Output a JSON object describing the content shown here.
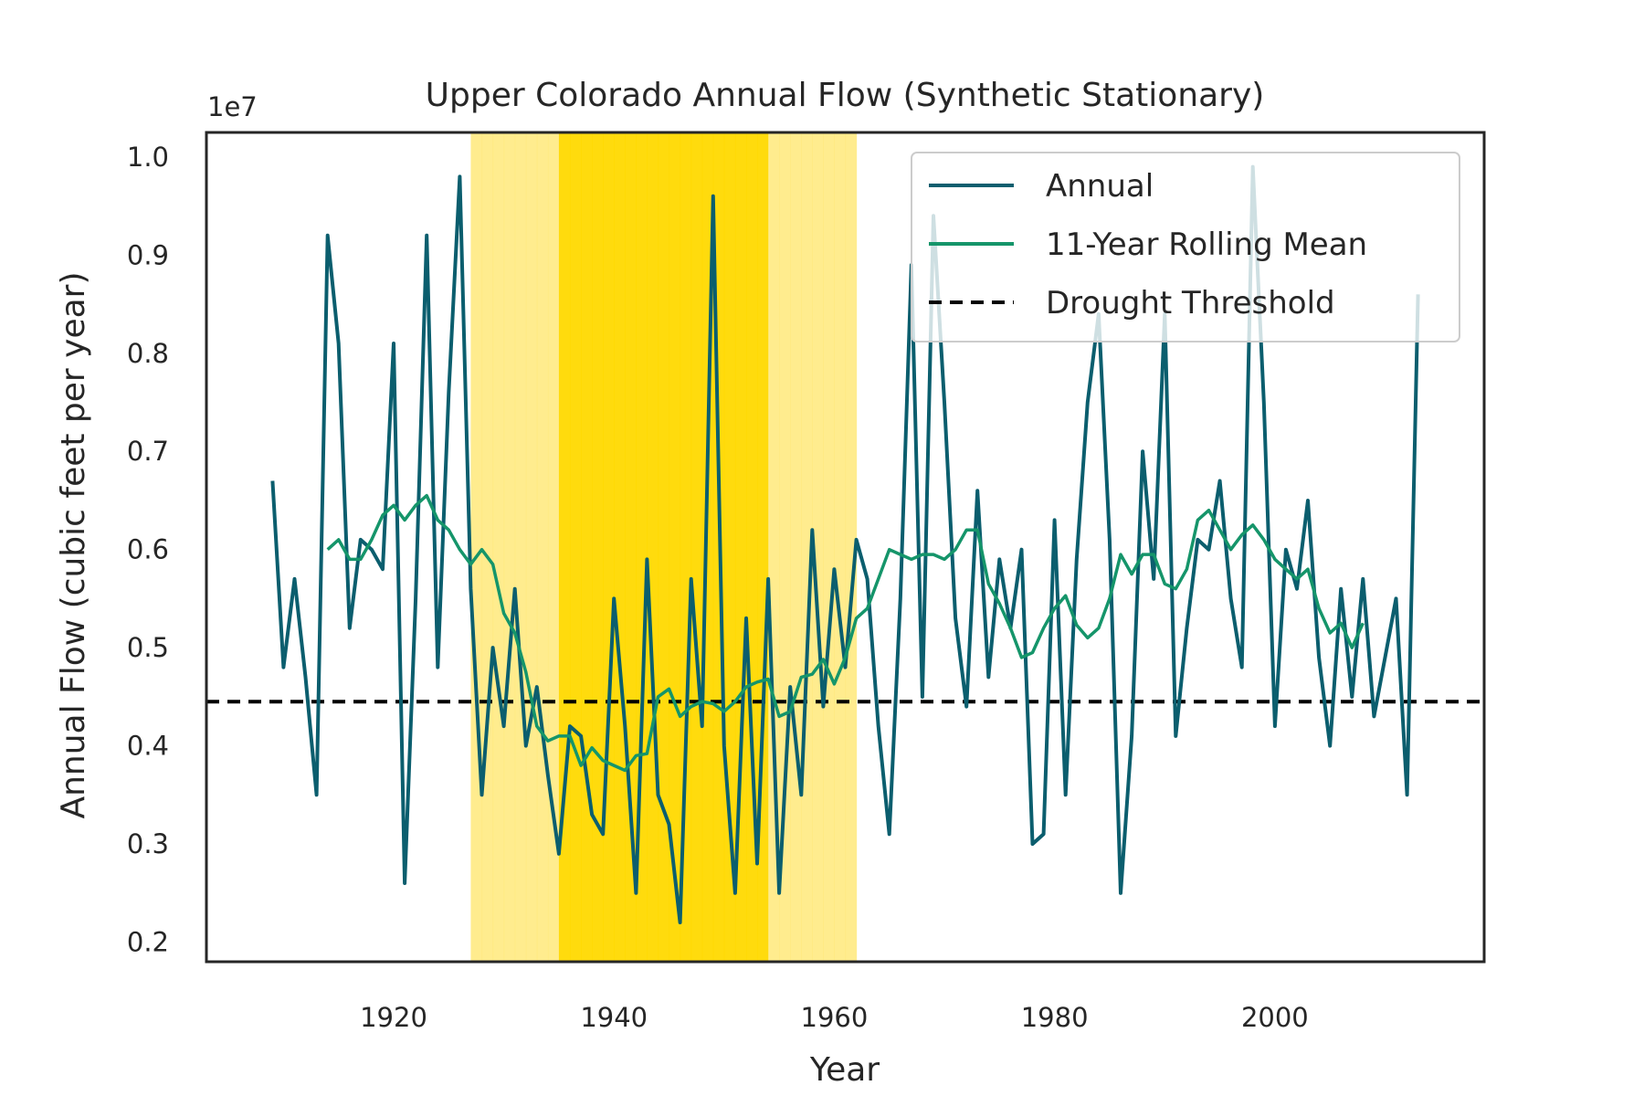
{
  "chart_data": {
    "type": "line",
    "title": "Upper Colorado Annual Flow (Synthetic Stationary)",
    "xlabel": "Year",
    "ylabel": "Annual Flow (cubic feet per year)",
    "y_offset_label": "1e7",
    "xlim": [
      1903,
      2019
    ],
    "ylim": [
      0.18,
      1.025
    ],
    "x_ticks": [
      1920,
      1940,
      1960,
      1980,
      2000
    ],
    "x_tick_labels": [
      "1920",
      "1940",
      "1960",
      "1980",
      "2000"
    ],
    "y_ticks": [
      0.2,
      0.3,
      0.4,
      0.5,
      0.6,
      0.7,
      0.8,
      0.9,
      1.0
    ],
    "y_tick_labels": [
      "0.2",
      "0.3",
      "0.4",
      "0.5",
      "0.6",
      "0.7",
      "0.8",
      "0.9",
      "1.0"
    ],
    "grid": false,
    "legend_position": "top-right",
    "colors": {
      "annual": "#0b5e6e",
      "rolling": "#15956a",
      "threshold": "#000000",
      "drought_light": "#ffe97a",
      "drought_dark": "#ffd900",
      "frame": "#262626"
    },
    "drought_period": {
      "start": 1927,
      "end": 1962
    },
    "drought_threshold": 0.445,
    "series": [
      {
        "name": "Annual",
        "x": [
          1909,
          1910,
          1911,
          1912,
          1913,
          1914,
          1915,
          1916,
          1917,
          1918,
          1919,
          1920,
          1921,
          1922,
          1923,
          1924,
          1925,
          1926,
          1927,
          1928,
          1929,
          1930,
          1931,
          1932,
          1933,
          1934,
          1935,
          1936,
          1937,
          1938,
          1939,
          1940,
          1941,
          1942,
          1943,
          1944,
          1945,
          1946,
          1947,
          1948,
          1949,
          1950,
          1951,
          1952,
          1953,
          1954,
          1955,
          1956,
          1957,
          1958,
          1959,
          1960,
          1961,
          1962,
          1963,
          1964,
          1965,
          1966,
          1967,
          1968,
          1969,
          1970,
          1971,
          1972,
          1973,
          1974,
          1975,
          1976,
          1977,
          1978,
          1979,
          1980,
          1981,
          1982,
          1983,
          1984,
          1985,
          1986,
          1987,
          1988,
          1989,
          1990,
          1991,
          1992,
          1993,
          1994,
          1995,
          1996,
          1997,
          1998,
          1999,
          2000,
          2001,
          2002,
          2003,
          2004,
          2005,
          2006,
          2007,
          2008,
          2009,
          2010,
          2011,
          2012,
          2013
        ],
        "values": [
          0.67,
          0.48,
          0.57,
          0.47,
          0.35,
          0.92,
          0.81,
          0.52,
          0.61,
          0.6,
          0.58,
          0.81,
          0.26,
          0.55,
          0.92,
          0.48,
          0.76,
          0.98,
          0.56,
          0.35,
          0.5,
          0.42,
          0.56,
          0.4,
          0.46,
          0.37,
          0.29,
          0.42,
          0.41,
          0.33,
          0.31,
          0.55,
          0.42,
          0.25,
          0.59,
          0.35,
          0.32,
          0.22,
          0.57,
          0.42,
          0.96,
          0.4,
          0.25,
          0.53,
          0.28,
          0.57,
          0.25,
          0.46,
          0.35,
          0.62,
          0.44,
          0.58,
          0.48,
          0.61,
          0.57,
          0.42,
          0.31,
          0.55,
          0.89,
          0.45,
          0.94,
          0.75,
          0.53,
          0.44,
          0.66,
          0.47,
          0.59,
          0.52,
          0.6,
          0.3,
          0.31,
          0.63,
          0.35,
          0.59,
          0.75,
          0.84,
          0.61,
          0.25,
          0.41,
          0.7,
          0.57,
          0.84,
          0.41,
          0.52,
          0.61,
          0.6,
          0.67,
          0.55,
          0.48,
          0.99,
          0.75,
          0.42,
          0.6,
          0.56,
          0.65,
          0.49,
          0.4,
          0.56,
          0.45,
          0.57,
          0.43,
          0.49,
          0.55,
          0.35,
          0.86
        ]
      },
      {
        "name": "11-Year Rolling Mean",
        "x": [
          1914,
          1915,
          1916,
          1917,
          1918,
          1919,
          1920,
          1921,
          1922,
          1923,
          1924,
          1925,
          1926,
          1927,
          1928,
          1929,
          1930,
          1931,
          1932,
          1933,
          1934,
          1935,
          1936,
          1937,
          1938,
          1939,
          1940,
          1941,
          1942,
          1943,
          1944,
          1945,
          1946,
          1947,
          1948,
          1949,
          1950,
          1951,
          1952,
          1953,
          1954,
          1955,
          1956,
          1957,
          1958,
          1959,
          1960,
          1961,
          1962,
          1963,
          1964,
          1965,
          1966,
          1967,
          1968,
          1969,
          1970,
          1971,
          1972,
          1973,
          1974,
          1975,
          1976,
          1977,
          1978,
          1979,
          1980,
          1981,
          1982,
          1983,
          1984,
          1985,
          1986,
          1987,
          1988,
          1989,
          1990,
          1991,
          1992,
          1993,
          1994,
          1995,
          1996,
          1997,
          1998,
          1999,
          2000,
          2001,
          2002,
          2003,
          2004,
          2005,
          2006,
          2007,
          2008
        ],
        "values": [
          0.6,
          0.61,
          0.59,
          0.59,
          0.61,
          0.635,
          0.645,
          0.63,
          0.645,
          0.655,
          0.63,
          0.62,
          0.6,
          0.585,
          0.6,
          0.585,
          0.535,
          0.515,
          0.475,
          0.42,
          0.405,
          0.41,
          0.41,
          0.38,
          0.398,
          0.385,
          0.38,
          0.375,
          0.39,
          0.392,
          0.45,
          0.458,
          0.43,
          0.44,
          0.445,
          0.443,
          0.435,
          0.445,
          0.46,
          0.465,
          0.468,
          0.43,
          0.435,
          0.47,
          0.473,
          0.488,
          0.463,
          0.49,
          0.53,
          0.54,
          0.57,
          0.6,
          0.595,
          0.59,
          0.595,
          0.595,
          0.59,
          0.6,
          0.62,
          0.62,
          0.565,
          0.545,
          0.52,
          0.49,
          0.495,
          0.52,
          0.54,
          0.553,
          0.523,
          0.51,
          0.52,
          0.55,
          0.595,
          0.575,
          0.595,
          0.595,
          0.565,
          0.56,
          0.58,
          0.63,
          0.64,
          0.62,
          0.6,
          0.615,
          0.625,
          0.61,
          0.59,
          0.58,
          0.57,
          0.58,
          0.54,
          0.515,
          0.525,
          0.5,
          0.525
        ]
      },
      {
        "name": "Drought Threshold",
        "values": [
          0.445
        ]
      }
    ]
  }
}
